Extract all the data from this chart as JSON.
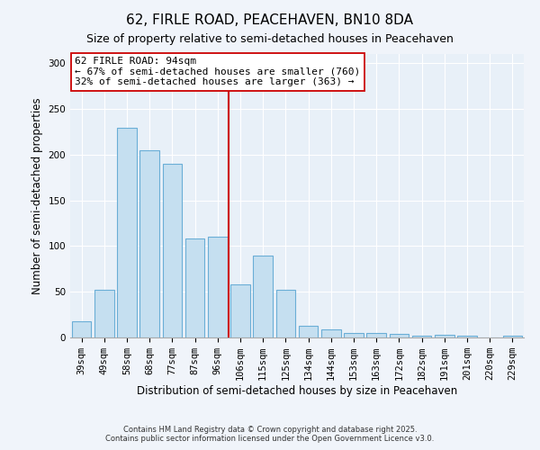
{
  "title": "62, FIRLE ROAD, PEACEHAVEN, BN10 8DA",
  "subtitle": "Size of property relative to semi-detached houses in Peacehaven",
  "xlabel": "Distribution of semi-detached houses by size in Peacehaven",
  "ylabel": "Number of semi-detached properties",
  "categories": [
    "39sqm",
    "49sqm",
    "58sqm",
    "68sqm",
    "77sqm",
    "87sqm",
    "96sqm",
    "106sqm",
    "115sqm",
    "125sqm",
    "134sqm",
    "144sqm",
    "153sqm",
    "163sqm",
    "172sqm",
    "182sqm",
    "191sqm",
    "201sqm",
    "220sqm",
    "229sqm"
  ],
  "values": [
    18,
    52,
    229,
    205,
    190,
    108,
    110,
    58,
    90,
    52,
    13,
    9,
    5,
    5,
    4,
    2,
    3,
    2,
    0,
    2
  ],
  "bar_color": "#c5dff0",
  "bar_edge_color": "#6aaed6",
  "background_color": "#f0f4fa",
  "plot_bg_color": "#e8f0f8",
  "grid_color": "#ffffff",
  "ylim": [
    0,
    310
  ],
  "yticks": [
    0,
    50,
    100,
    150,
    200,
    250,
    300
  ],
  "vline_x": 6.5,
  "vline_color": "#cc0000",
  "annotation_title": "62 FIRLE ROAD: 94sqm",
  "annotation_line1": "← 67% of semi-detached houses are smaller (760)",
  "annotation_line2": "32% of semi-detached houses are larger (363) →",
  "annotation_box_color": "#ffffff",
  "annotation_box_edge": "#cc0000",
  "footer1": "Contains HM Land Registry data © Crown copyright and database right 2025.",
  "footer2": "Contains public sector information licensed under the Open Government Licence v3.0.",
  "title_fontsize": 11,
  "subtitle_fontsize": 9,
  "axis_label_fontsize": 8.5,
  "tick_fontsize": 7.5,
  "annotation_fontsize": 8,
  "footer_fontsize": 6
}
